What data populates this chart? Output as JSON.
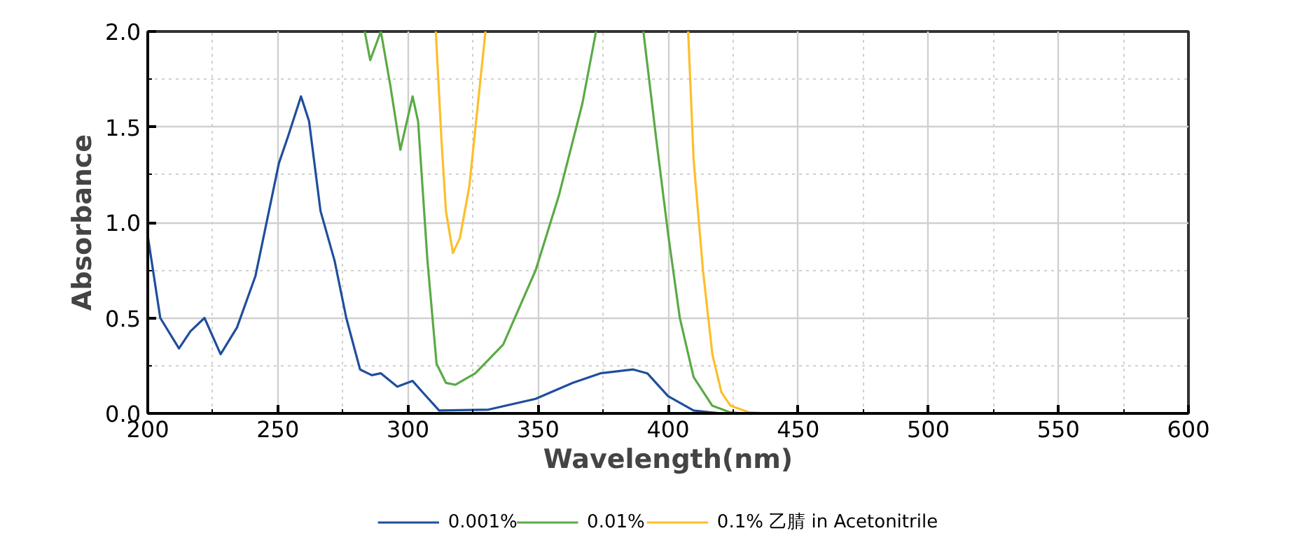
{
  "chart_data": {
    "type": "line",
    "xlabel": "Wavelength(nm)",
    "ylabel": "Absorbance",
    "xlim": [
      200,
      600
    ],
    "ylim": [
      0,
      2.0
    ],
    "xticks": [
      200,
      250,
      300,
      350,
      400,
      450,
      500,
      550,
      600
    ],
    "yticks": [
      {
        "value": 0,
        "label": "0.0"
      },
      {
        "value": 0.5,
        "label": "0.5"
      },
      {
        "value": 1.0,
        "label": "1.0"
      },
      {
        "value": 1.5,
        "label": "1.5"
      },
      {
        "value": 2.0,
        "label": "2.0"
      }
    ],
    "grid": true,
    "legend": "bottom",
    "line_style": "solid",
    "marker": "none",
    "series": [
      {
        "name": "0.001%",
        "color": "#1f4e9c",
        "x": [
          200,
          204.8,
          212,
          216.4,
          221.8,
          228,
          234.3,
          241.4,
          250.4,
          253.9,
          258.9,
          262,
          266.4,
          271.8,
          276.3,
          281.6,
          286.1,
          289.6,
          295.9,
          301.8,
          305.7,
          312,
          331,
          349,
          363.4,
          374,
          386.6,
          392,
          400,
          409.8,
          420.5,
          600
        ],
        "values": [
          0.93,
          0.5,
          0.34,
          0.43,
          0.5,
          0.31,
          0.45,
          0.72,
          1.31,
          1.45,
          1.66,
          1.53,
          1.06,
          0.8,
          0.5,
          0.23,
          0.2,
          0.21,
          0.14,
          0.17,
          0.11,
          0.015,
          0.02,
          0.076,
          0.16,
          0.21,
          0.23,
          0.21,
          0.09,
          0.015,
          0,
          0
        ]
      },
      {
        "name": "0.01%",
        "color": "#5aaa46",
        "x": [
          283.4,
          285.5,
          289.6,
          293.2,
          297.1,
          301.8,
          303.9,
          307.5,
          311,
          314.6,
          318.2,
          325.9,
          336.6,
          349.1,
          358,
          367,
          372.3,
          381,
          390.5,
          395.5,
          400,
          404.5,
          409.8,
          417,
          424,
          429.5
        ],
        "values": [
          2.0,
          1.85,
          2.0,
          1.72,
          1.38,
          1.66,
          1.53,
          0.8,
          0.26,
          0.16,
          0.15,
          0.21,
          0.36,
          0.75,
          1.14,
          1.62,
          2.0,
          null,
          2.0,
          1.43,
          0.94,
          0.5,
          0.19,
          0.04,
          0.005,
          0
        ]
      },
      {
        "name": "0.1% 乙腈 in Acetonitrile",
        "color": "#fdbe2c",
        "x": [
          310.7,
          312.9,
          314.6,
          317.3,
          320,
          323.6,
          329.8,
          370,
          407.7,
          409.8,
          413.4,
          417,
          420.5,
          424,
          431.3,
          438.4
        ],
        "values": [
          2.0,
          1.43,
          1.06,
          0.84,
          0.92,
          1.19,
          2.0,
          null,
          2.0,
          1.33,
          0.75,
          0.31,
          0.11,
          0.04,
          0.005,
          0
        ]
      }
    ]
  }
}
